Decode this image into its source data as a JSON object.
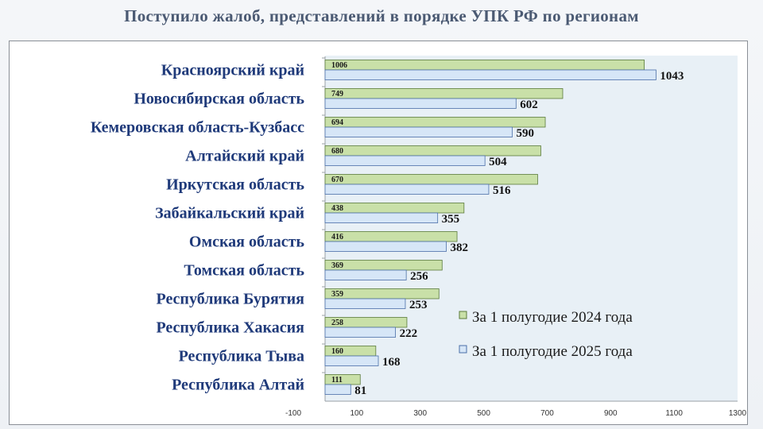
{
  "title": "Поступило жалоб, представлений в порядке УПК РФ по регионам",
  "chart_data": {
    "type": "bar",
    "orientation": "horizontal",
    "categories": [
      "Красноярский край",
      "Новосибирская область",
      "Кемеровская область-Кузбасс",
      "Алтайский край",
      "Иркутская область",
      "Забайкальский край",
      "Омская область",
      "Томская область",
      "Республика Бурятия",
      "Республика Хакасия",
      "Республика Тыва",
      "Республика Алтай"
    ],
    "series": [
      {
        "name": "За 1 полугодие 2024 года",
        "color": "#c9e0a8",
        "stroke": "#5a7a3a",
        "values": [
          1006,
          749,
          694,
          680,
          670,
          438,
          416,
          369,
          359,
          258,
          160,
          111
        ]
      },
      {
        "name": "За 1 полугодие 2025 года",
        "color": "#d6e6f7",
        "stroke": "#4a6fa8",
        "values": [
          1043,
          602,
          590,
          504,
          516,
          355,
          382,
          256,
          253,
          222,
          168,
          81
        ]
      }
    ],
    "xlim": [
      -100,
      1300
    ],
    "xticks": [
      "-100",
      "100",
      "300",
      "500",
      "700",
      "900",
      "1100",
      "1300"
    ],
    "legend_position": "bottom-right",
    "plot_background": "#e8f0f6"
  }
}
